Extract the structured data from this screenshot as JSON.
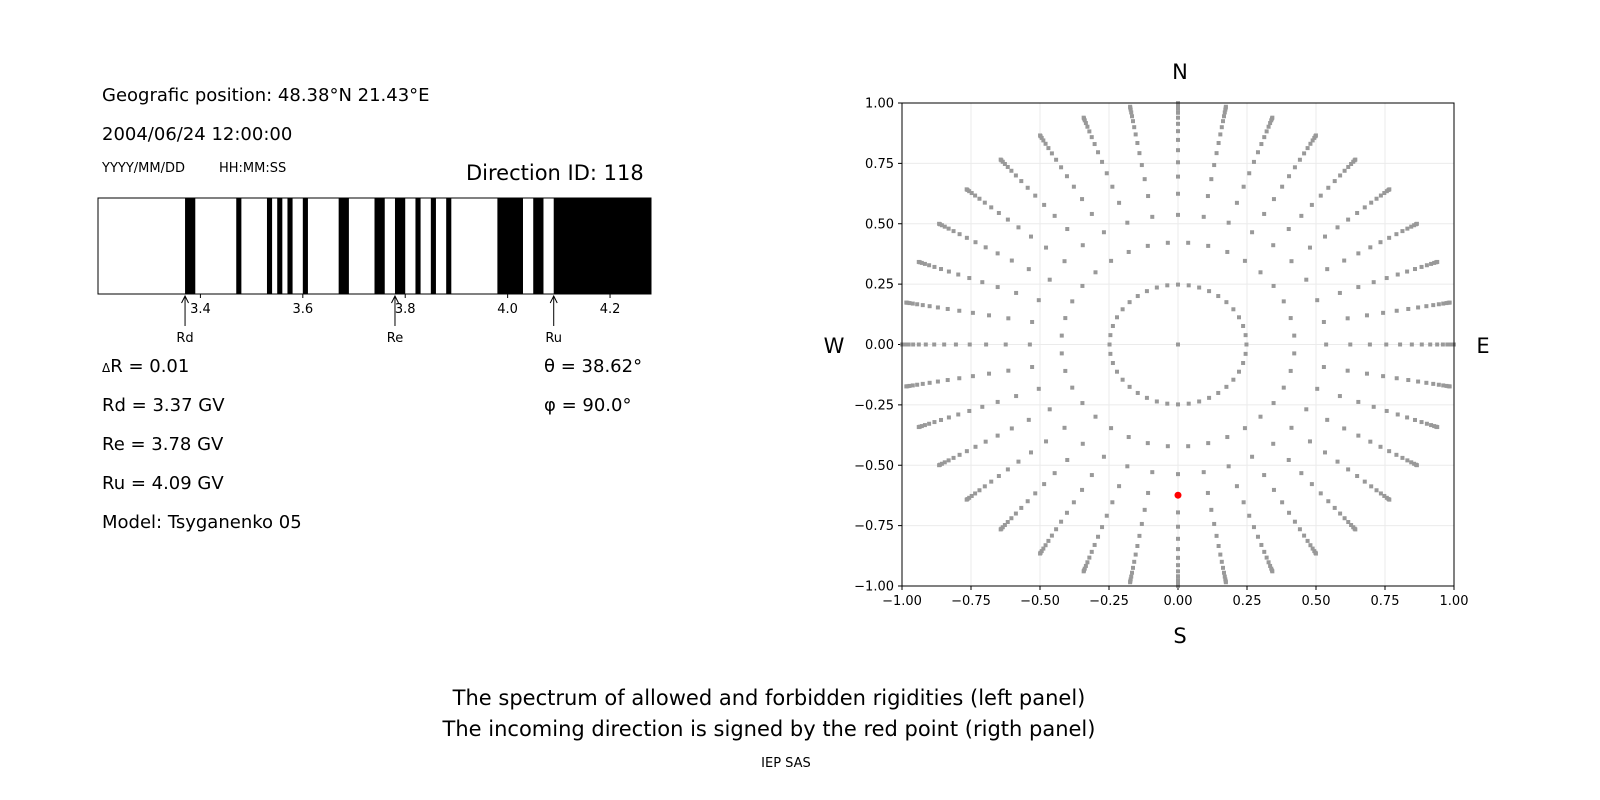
{
  "header": {
    "position": "Geografic position: 48.38°N 21.43°E",
    "datetime": "2004/06/24 12:00:00",
    "date_format": "YYYY/MM/DD",
    "time_format": "HH:MM:SS",
    "direction_id": "Direction ID: 118"
  },
  "params": {
    "delta_r": "R = 0.01",
    "delta_symbol": "Δ",
    "rd": "Rd = 3.37 GV",
    "re": "Re = 3.78 GV",
    "ru": "Ru = 4.09 GV",
    "model": "Model: Tsyganenko 05",
    "theta": "θ = 38.62°",
    "phi": "φ = 90.0°"
  },
  "footer": {
    "line1": "The spectrum of allowed and forbidden rigidities (left panel)",
    "line2": "The incoming direction is signed by the red point (rigth panel)",
    "credit": "IEP SAS"
  },
  "chart_data": [
    {
      "type": "bar",
      "description_kind": "rigidity spectrum (black = forbidden, white = allowed)",
      "xlim": [
        3.2,
        4.28
      ],
      "xticks": [
        "3.4",
        "3.6",
        "3.8",
        "4.0",
        "4.2"
      ],
      "forbidden_intervals": [
        [
          3.37,
          3.39
        ],
        [
          3.47,
          3.48
        ],
        [
          3.53,
          3.54
        ],
        [
          3.55,
          3.56
        ],
        [
          3.57,
          3.58
        ],
        [
          3.6,
          3.61
        ],
        [
          3.67,
          3.69
        ],
        [
          3.74,
          3.76
        ],
        [
          3.78,
          3.8
        ],
        [
          3.82,
          3.83
        ],
        [
          3.85,
          3.86
        ],
        [
          3.88,
          3.89
        ],
        [
          3.98,
          4.03
        ],
        [
          4.05,
          4.07
        ],
        [
          4.09,
          4.28
        ]
      ],
      "markers": [
        {
          "label": "Rd",
          "value": 3.37
        },
        {
          "label": "Re",
          "value": 3.78
        },
        {
          "label": "Ru",
          "value": 4.09
        }
      ],
      "colors": {
        "forbidden": "#000000",
        "allowed": "#ffffff"
      }
    },
    {
      "type": "scatter",
      "xlim": [
        -1,
        1
      ],
      "ylim": [
        -1,
        1
      ],
      "xticks": [
        "−1.00",
        "−0.75",
        "−0.50",
        "−0.25",
        "0.00",
        "0.25",
        "0.50",
        "0.75",
        "1.00"
      ],
      "yticks": [
        "−1.00",
        "−0.75",
        "−0.50",
        "−0.25",
        "0.00",
        "0.25",
        "0.50",
        "0.75",
        "1.00"
      ],
      "grid": true,
      "compass": {
        "n": "N",
        "s": "S",
        "w": "W",
        "e": "E"
      },
      "grid_points": {
        "rings": 16,
        "azimuths": 36,
        "color": "#999999"
      },
      "selected_point": {
        "x": 0.0,
        "y": -0.624,
        "color": "#ff0000"
      }
    }
  ]
}
